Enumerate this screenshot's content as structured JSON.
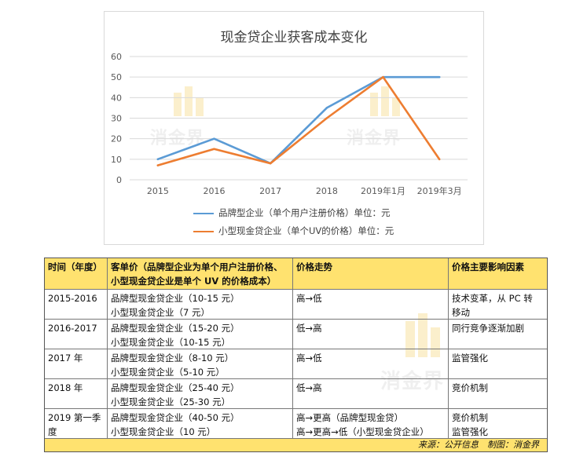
{
  "chart_data": {
    "type": "line",
    "title": "现金贷企业获客成本变化",
    "categories": [
      "2015",
      "2016",
      "2017",
      "2018",
      "2019年1月",
      "2019年3月"
    ],
    "ylim": [
      0,
      60
    ],
    "yticks": [
      "0",
      "10",
      "20",
      "30",
      "40",
      "50",
      "60"
    ],
    "grid": true,
    "legend_position": "bottom",
    "series": [
      {
        "name": "品牌型企业（单个用户注册价格）单位：元",
        "values": [
          10,
          20,
          8,
          35,
          50,
          50
        ],
        "color": "#5b9bd5"
      },
      {
        "name": "小型现金贷企业（单个UV的价格）单位：元",
        "values": [
          7,
          15,
          8,
          30,
          50,
          10
        ],
        "color": "#ed7d31"
      }
    ]
  },
  "watermark": {
    "text": "消金界"
  },
  "table": {
    "headers": [
      "时间（年度）",
      "客单价（品牌型企业为单个用户注册价格、小型现金贷企业是单个 UV 的价格成本）",
      "价格走势",
      "价格主要影响因素"
    ],
    "rows": [
      {
        "time": "2015-2016",
        "price_a": "品牌型现金贷企业（10-15 元）",
        "price_b": "小型现金贷企业（7 元）",
        "trend_a": "高→低",
        "trend_b": "",
        "factor_a": "技术变革，从 PC 转",
        "factor_b": "移动"
      },
      {
        "time": "2016-2017",
        "price_a": "品牌型现金贷企业（15-20 元）",
        "price_b": "小型现金贷企业（10-15 元）",
        "trend_a": "低→高",
        "trend_b": "",
        "factor_a": "同行竞争逐渐加剧",
        "factor_b": ""
      },
      {
        "time": "2017 年",
        "price_a": "品牌型现金贷企业（8-10 元）",
        "price_b": "小型现金贷企业（5-10 元）",
        "trend_a": "高→低",
        "trend_b": "",
        "factor_a": "监管强化",
        "factor_b": ""
      },
      {
        "time": "2018 年",
        "price_a": "品牌型现金贷企业（25-40 元）",
        "price_b": "小型现金贷企业（25-30 元）",
        "trend_a": "低→高",
        "trend_b": "",
        "factor_a": "竞价机制",
        "factor_b": ""
      },
      {
        "time": "2019 第一季度",
        "price_a": "品牌型现金贷企业（40-50 元）",
        "price_b": "小型现金贷企业（10 元）",
        "trend_a": "高→更高（品牌型现金贷）",
        "trend_b": "高→更高→低（小型现金贷企业）",
        "factor_a": "竞价机制",
        "factor_b": "监管强化"
      }
    ],
    "footer": "来源：公开信息　制图：消金界"
  }
}
